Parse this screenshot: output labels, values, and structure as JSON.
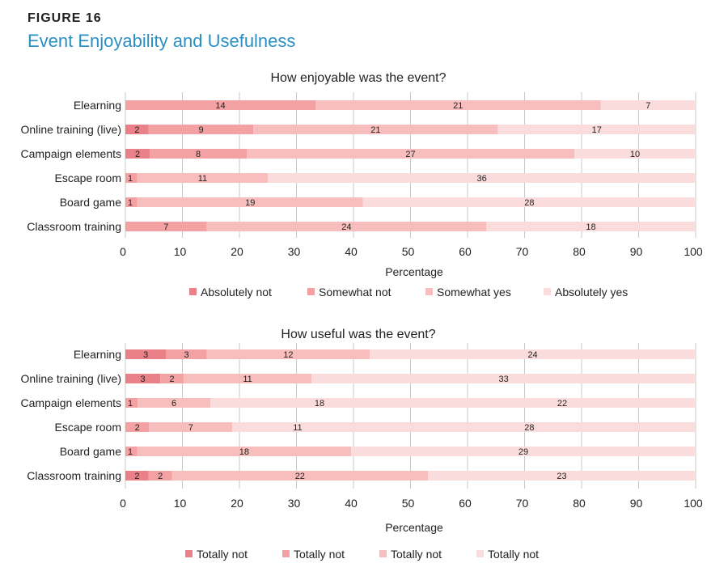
{
  "figure": {
    "label": "FIGURE 16",
    "title": "Event Enjoyability and Usefulness"
  },
  "colors": {
    "level1": "#ea8088",
    "level2": "#f3a1a2",
    "level3": "#f8bebe",
    "level4": "#fbdcdc",
    "grid": "#c8c8c8",
    "text": "#222222"
  },
  "chart_data": [
    {
      "type": "bar",
      "orientation": "horizontal",
      "stacked": true,
      "title": "How enjoyable was the event?",
      "xlabel": "Percentage",
      "ylabel": "",
      "xlim": [
        0,
        100
      ],
      "xticks": [
        0,
        10,
        20,
        30,
        40,
        50,
        60,
        70,
        80,
        90,
        100
      ],
      "categories": [
        "Elearning",
        "Online training (live)",
        "Campaign elements",
        "Escape room",
        "Board game",
        "Classroom training"
      ],
      "series": [
        {
          "name": "Absolutely not",
          "values": [
            0,
            2,
            2,
            0,
            0,
            0
          ]
        },
        {
          "name": "Somewhat not",
          "values": [
            14,
            9,
            8,
            1,
            1,
            7
          ]
        },
        {
          "name": "Somewhat yes",
          "values": [
            21,
            21,
            27,
            11,
            19,
            24
          ]
        },
        {
          "name": "Absolutely yes",
          "values": [
            7,
            17,
            10,
            36,
            28,
            18
          ]
        }
      ],
      "legend": "bottom"
    },
    {
      "type": "bar",
      "orientation": "horizontal",
      "stacked": true,
      "title": "How useful was the event?",
      "xlabel": "Percentage",
      "ylabel": "",
      "xlim": [
        0,
        100
      ],
      "xticks": [
        0,
        10,
        20,
        30,
        40,
        50,
        60,
        70,
        80,
        90,
        100
      ],
      "categories": [
        "Elearning",
        "Online training (live)",
        "Campaign elements",
        "Escape room",
        "Board game",
        "Classroom training"
      ],
      "series": [
        {
          "name": "Totally not",
          "values": [
            3,
            3,
            0,
            0,
            0,
            2
          ]
        },
        {
          "name": "Totally not",
          "values": [
            3,
            2,
            1,
            2,
            1,
            2
          ]
        },
        {
          "name": "Totally not",
          "values": [
            12,
            11,
            6,
            7,
            18,
            22
          ]
        },
        {
          "name": "Totally not",
          "values": [
            24,
            33,
            18,
            11,
            29,
            23
          ]
        }
      ],
      "extra_series": [
        {
          "name": "",
          "values": [
            0,
            0,
            22,
            28,
            0,
            0
          ]
        }
      ],
      "legend": "bottom"
    }
  ]
}
